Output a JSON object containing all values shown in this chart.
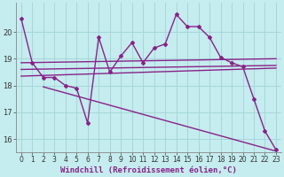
{
  "background_color": "#c5ecee",
  "grid_color": "#a0d4d8",
  "line_color": "#882288",
  "marker_color": "#882288",
  "xlabel": "Windchill (Refroidissement éolien,°C)",
  "xlabel_fontsize": 6.5,
  "tick_fontsize": 5.5,
  "xlim": [
    -0.5,
    23.5
  ],
  "ylim": [
    15.5,
    21.1
  ],
  "yticks": [
    16,
    17,
    18,
    19,
    20
  ],
  "xticks": [
    0,
    1,
    2,
    3,
    4,
    5,
    6,
    7,
    8,
    9,
    10,
    11,
    12,
    13,
    14,
    15,
    16,
    17,
    18,
    19,
    20,
    21,
    22,
    23
  ],
  "series": [
    {
      "x": [
        0,
        1,
        2,
        3,
        4,
        5,
        6,
        7,
        8,
        9,
        10,
        11,
        12,
        13,
        14,
        15,
        16,
        17,
        18,
        19,
        20,
        21,
        22,
        23
      ],
      "y": [
        20.5,
        18.85,
        18.3,
        18.3,
        18.0,
        17.9,
        16.6,
        19.8,
        18.5,
        19.1,
        19.6,
        18.85,
        19.4,
        19.55,
        20.65,
        20.2,
        20.2,
        19.8,
        19.05,
        18.85,
        18.7,
        17.5,
        16.3,
        15.6
      ],
      "has_markers": true,
      "linewidth": 1.0
    },
    {
      "x": [
        0,
        23
      ],
      "y": [
        18.85,
        19.0
      ],
      "has_markers": false,
      "linewidth": 1.0
    },
    {
      "x": [
        0,
        23
      ],
      "y": [
        18.6,
        18.75
      ],
      "has_markers": false,
      "linewidth": 1.0
    },
    {
      "x": [
        0,
        23
      ],
      "y": [
        18.35,
        18.65
      ],
      "has_markers": false,
      "linewidth": 1.0
    },
    {
      "x": [
        2,
        23
      ],
      "y": [
        17.95,
        15.55
      ],
      "has_markers": false,
      "linewidth": 1.0
    }
  ]
}
